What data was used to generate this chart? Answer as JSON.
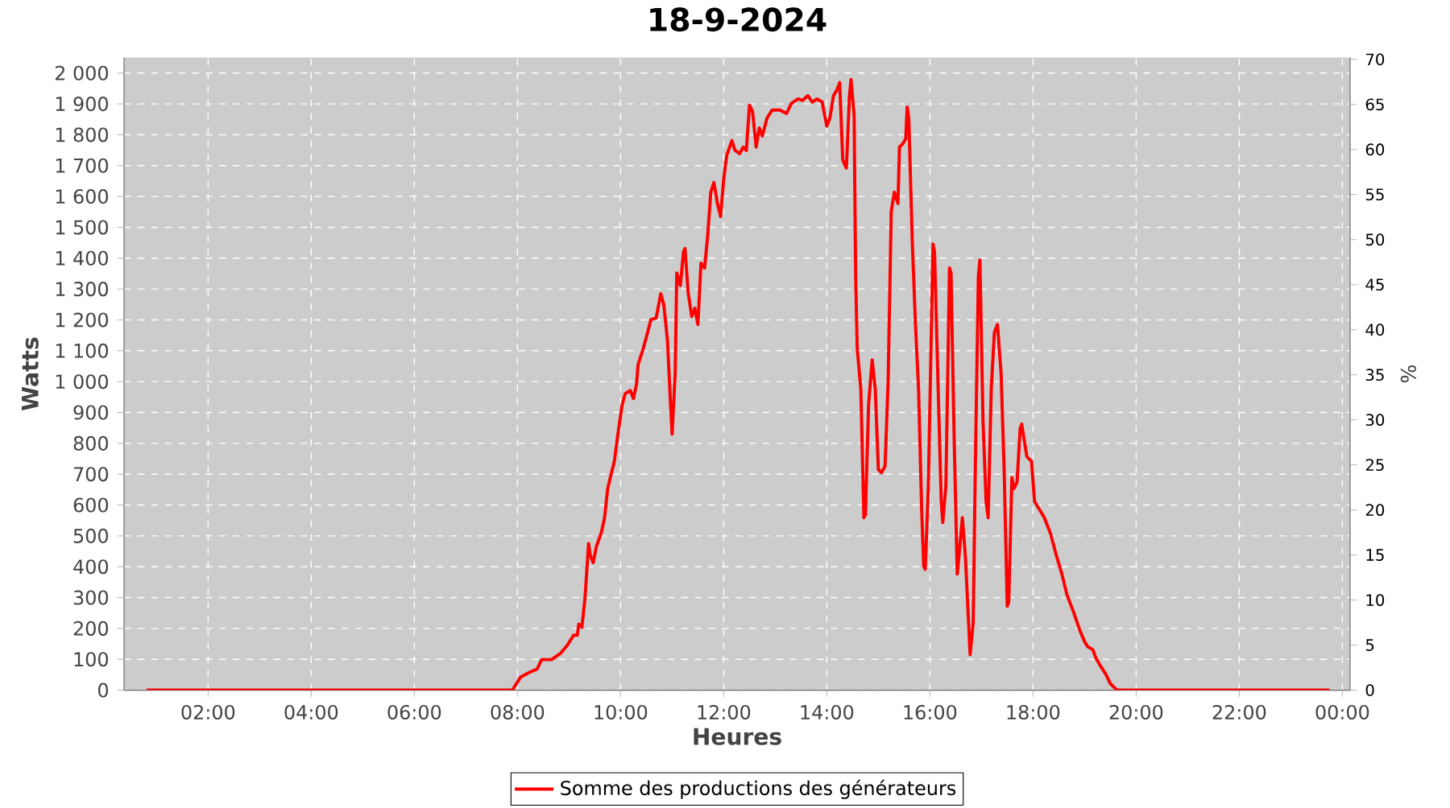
{
  "chart_data": {
    "type": "line",
    "title": "18-9-2024",
    "xlabel": "Heures",
    "ylabel": "Watts",
    "y2label": "%",
    "xlim": [
      0.37,
      24.15
    ],
    "xticks": [
      {
        "value": 2,
        "label": "02:00"
      },
      {
        "value": 4,
        "label": "04:00"
      },
      {
        "value": 6,
        "label": "06:00"
      },
      {
        "value": 8,
        "label": "08:00"
      },
      {
        "value": 10,
        "label": "10:00"
      },
      {
        "value": 12,
        "label": "12:00"
      },
      {
        "value": 14,
        "label": "14:00"
      },
      {
        "value": 16,
        "label": "16:00"
      },
      {
        "value": 18,
        "label": "18:00"
      },
      {
        "value": 20,
        "label": "20:00"
      },
      {
        "value": 22,
        "label": "22:00"
      },
      {
        "value": 24,
        "label": "00:00"
      }
    ],
    "ylim": [
      0,
      2050
    ],
    "yticks": [
      0,
      100,
      200,
      300,
      400,
      500,
      600,
      700,
      800,
      900,
      {
        "value": 1000,
        "label": "1 000"
      },
      {
        "value": 1100,
        "label": "1 100"
      },
      {
        "value": 1200,
        "label": "1 200"
      },
      {
        "value": 1300,
        "label": "1 300"
      },
      {
        "value": 1400,
        "label": "1 400"
      },
      {
        "value": 1500,
        "label": "1 500"
      },
      {
        "value": 1600,
        "label": "1 600"
      },
      {
        "value": 1700,
        "label": "1 700"
      },
      {
        "value": 1800,
        "label": "1 800"
      },
      {
        "value": 1900,
        "label": "1 900"
      },
      {
        "value": 2000,
        "label": "2 000"
      }
    ],
    "y2lim": [
      0,
      70.2
    ],
    "y2ticks": [
      0,
      5,
      10,
      15,
      20,
      25,
      30,
      35,
      40,
      45,
      50,
      55,
      60,
      65,
      70
    ],
    "grid": true,
    "legend": "bottom",
    "marker": "none",
    "line_style": "solid",
    "series": [
      {
        "name": "Somme des productions des  générateurs",
        "color": "#ff0000",
        "x": [
          0.81,
          7.9,
          8.06,
          8.22,
          8.38,
          8.47,
          8.66,
          8.84,
          8.97,
          9.09,
          9.16,
          9.19,
          9.25,
          9.31,
          9.38,
          9.41,
          9.47,
          9.53,
          9.63,
          9.69,
          9.75,
          9.81,
          9.88,
          9.94,
          10.03,
          10.09,
          10.19,
          10.25,
          10.31,
          10.34,
          10.44,
          10.5,
          10.59,
          10.69,
          10.78,
          10.84,
          10.91,
          10.97,
          11.0,
          11.06,
          11.09,
          11.16,
          11.22,
          11.25,
          11.31,
          11.38,
          11.44,
          11.5,
          11.56,
          11.63,
          11.69,
          11.75,
          11.81,
          11.88,
          11.94,
          12.0,
          12.06,
          12.16,
          12.22,
          12.31,
          12.38,
          12.44,
          12.5,
          12.56,
          12.63,
          12.69,
          12.75,
          12.84,
          12.94,
          13.09,
          13.22,
          13.31,
          13.44,
          13.53,
          13.63,
          13.72,
          13.81,
          13.91,
          14.0,
          14.06,
          14.13,
          14.19,
          14.25,
          14.31,
          14.38,
          14.44,
          14.47,
          14.53,
          14.56,
          14.59,
          14.66,
          14.72,
          14.75,
          14.81,
          14.88,
          14.94,
          15.0,
          15.06,
          15.13,
          15.19,
          15.25,
          15.31,
          15.38,
          15.41,
          15.47,
          15.53,
          15.56,
          15.59,
          15.66,
          15.72,
          15.78,
          15.84,
          15.88,
          15.91,
          15.97,
          16.03,
          16.06,
          16.09,
          16.16,
          16.22,
          16.25,
          16.31,
          16.38,
          16.41,
          16.47,
          16.53,
          16.56,
          16.63,
          16.69,
          16.75,
          16.78,
          16.84,
          16.88,
          16.94,
          16.97,
          17.03,
          17.09,
          17.13,
          17.19,
          17.25,
          17.31,
          17.38,
          17.44,
          17.5,
          17.53,
          17.59,
          17.63,
          17.69,
          17.75,
          17.78,
          17.88,
          17.97,
          18.03,
          18.09,
          18.22,
          18.34,
          18.44,
          18.56,
          18.66,
          18.78,
          18.91,
          19.0,
          19.06,
          19.16,
          19.22,
          19.31,
          19.41,
          19.5,
          19.63,
          23.75
        ],
        "values": [
          0,
          0,
          42,
          57,
          68,
          99,
          99,
          120,
          146,
          178,
          178,
          214,
          204,
          298,
          475,
          439,
          413,
          465,
          512,
          559,
          653,
          695,
          742,
          820,
          924,
          961,
          971,
          945,
          992,
          1055,
          1107,
          1144,
          1201,
          1206,
          1285,
          1248,
          1133,
          924,
          830,
          1029,
          1352,
          1311,
          1420,
          1431,
          1290,
          1211,
          1238,
          1185,
          1384,
          1368,
          1473,
          1614,
          1645,
          1577,
          1535,
          1655,
          1734,
          1781,
          1749,
          1739,
          1760,
          1749,
          1896,
          1875,
          1760,
          1822,
          1796,
          1854,
          1880,
          1880,
          1869,
          1901,
          1916,
          1911,
          1927,
          1906,
          1916,
          1906,
          1828,
          1854,
          1927,
          1943,
          1969,
          1718,
          1692,
          1927,
          1979,
          1864,
          1342,
          1107,
          976,
          559,
          569,
          924,
          1070,
          976,
          715,
          705,
          726,
          1003,
          1551,
          1614,
          1577,
          1760,
          1770,
          1786,
          1890,
          1854,
          1446,
          1185,
          976,
          585,
          402,
          392,
          663,
          1185,
          1446,
          1420,
          976,
          611,
          543,
          663,
          1368,
          1352,
          820,
          376,
          428,
          559,
          428,
          219,
          115,
          219,
          715,
          1342,
          1394,
          872,
          611,
          559,
          976,
          1159,
          1185,
          1029,
          715,
          272,
          287,
          689,
          653,
          674,
          846,
          862,
          757,
          742,
          611,
          595,
          559,
          507,
          444,
          376,
          308,
          256,
          193,
          157,
          141,
          131,
          104,
          78,
          52,
          21,
          0,
          0
        ]
      }
    ]
  }
}
